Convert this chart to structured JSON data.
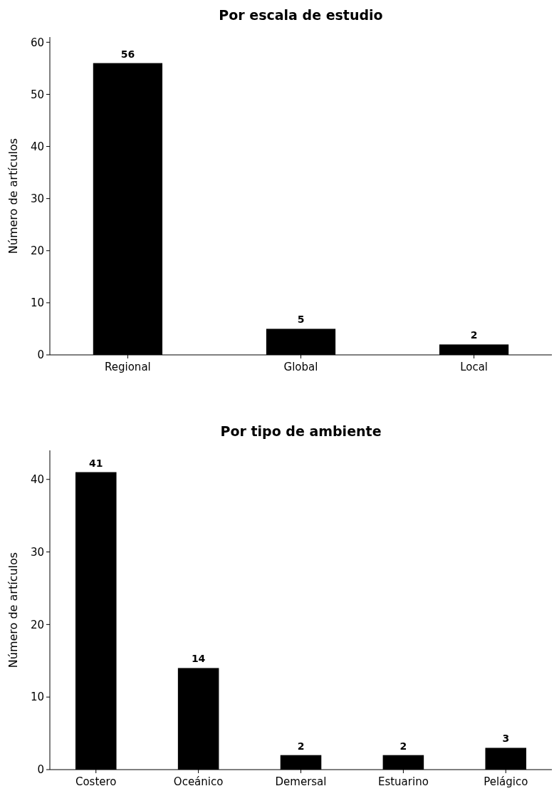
{
  "chart_data": [
    {
      "type": "bar",
      "title": "Por escala de estudio",
      "ylabel": "Número de artículos",
      "categories": [
        "Regional",
        "Global",
        "Local"
      ],
      "values": [
        56,
        5,
        2
      ],
      "color": "#000000",
      "ylim": [
        0,
        61
      ],
      "yticks": [
        0,
        10,
        20,
        30,
        40,
        50,
        60
      ],
      "data_labels": true,
      "grid": false
    },
    {
      "type": "bar",
      "title": "Por tipo de ambiente",
      "ylabel": "Número de artículos",
      "categories": [
        "Costero",
        "Oceánico",
        "Demersal",
        "Estuarino",
        "Pelágico"
      ],
      "values": [
        41,
        14,
        2,
        2,
        3
      ],
      "color": "#000000",
      "ylim": [
        0,
        44
      ],
      "yticks": [
        0,
        10,
        20,
        30,
        40
      ],
      "data_labels": true,
      "grid": false
    }
  ]
}
